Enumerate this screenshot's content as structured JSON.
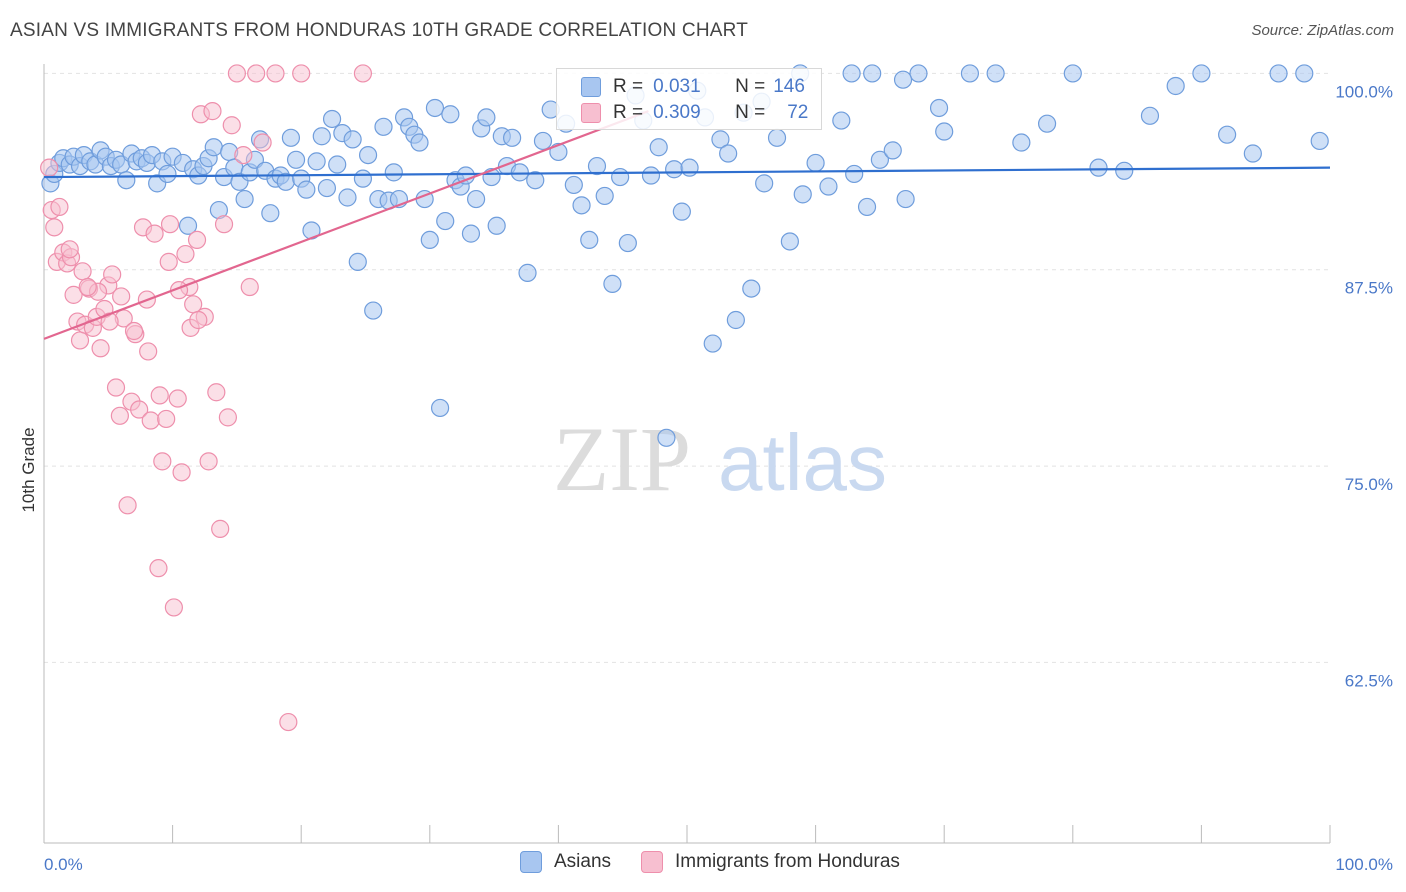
{
  "header": {
    "title": "ASIAN VS IMMIGRANTS FROM HONDURAS 10TH GRADE CORRELATION CHART",
    "source": "Source: ZipAtlas.com"
  },
  "watermark": {
    "zip": "ZIP",
    "atlas": "atlas"
  },
  "legend_top": {
    "rows": [
      {
        "r_label": "R =",
        "r_value": "0.031",
        "n_label": "N =",
        "n_value": "146"
      },
      {
        "r_label": "R =",
        "r_value": "0.309",
        "n_label": "N =",
        "n_value": "72"
      }
    ]
  },
  "legend_bottom": {
    "asians": "Asians",
    "honduras": "Immigrants from Honduras"
  },
  "colors": {
    "asians_fill": "#a8c6f0",
    "asians_stroke": "#6f9ddc",
    "asians_line": "#2f6fcf",
    "honduras_fill": "#f7bfd0",
    "honduras_stroke": "#ee8fac",
    "honduras_line": "#e2668f",
    "tick_text": "#4a78c8",
    "grid": "#e2e2e2"
  },
  "chart_data": {
    "type": "scatter",
    "title": "ASIAN VS IMMIGRANTS FROM HONDURAS 10TH GRADE CORRELATION CHART",
    "xlabel": "",
    "ylabel": "10th Grade",
    "xlim": [
      0,
      100
    ],
    "ylim": [
      51,
      100.6
    ],
    "x_tick_labels": [
      "0.0%",
      "100.0%"
    ],
    "y_ticks": [
      {
        "value": 100,
        "label": "100.0%"
      },
      {
        "value": 87.5,
        "label": "87.5%"
      },
      {
        "value": 75,
        "label": "75.0%"
      },
      {
        "value": 62.5,
        "label": "62.5%"
      }
    ],
    "series": [
      {
        "name": "Asians",
        "trend": {
          "x": [
            0,
            100
          ],
          "y": [
            93.4,
            94.0
          ]
        },
        "points": [
          [
            0.5,
            93.0
          ],
          [
            0.8,
            93.6
          ],
          [
            1.2,
            94.3
          ],
          [
            1.5,
            94.6
          ],
          [
            2.0,
            94.2
          ],
          [
            2.3,
            94.7
          ],
          [
            2.8,
            94.1
          ],
          [
            3.1,
            94.8
          ],
          [
            3.6,
            94.4
          ],
          [
            4.0,
            94.2
          ],
          [
            4.4,
            95.1
          ],
          [
            4.8,
            94.7
          ],
          [
            5.2,
            94.1
          ],
          [
            5.6,
            94.5
          ],
          [
            6.0,
            94.2
          ],
          [
            6.4,
            93.2
          ],
          [
            6.8,
            94.9
          ],
          [
            7.2,
            94.4
          ],
          [
            7.6,
            94.6
          ],
          [
            8.0,
            94.3
          ],
          [
            8.4,
            94.8
          ],
          [
            8.8,
            93.0
          ],
          [
            9.2,
            94.4
          ],
          [
            9.6,
            93.6
          ],
          [
            10.0,
            94.7
          ],
          [
            10.8,
            94.3
          ],
          [
            11.2,
            90.3
          ],
          [
            11.6,
            93.9
          ],
          [
            12.0,
            93.5
          ],
          [
            12.4,
            94.1
          ],
          [
            12.8,
            94.6
          ],
          [
            13.2,
            95.3
          ],
          [
            13.6,
            91.3
          ],
          [
            14.0,
            93.4
          ],
          [
            14.4,
            95.0
          ],
          [
            14.8,
            94.0
          ],
          [
            15.2,
            93.1
          ],
          [
            15.6,
            92.0
          ],
          [
            16.0,
            93.7
          ],
          [
            16.4,
            94.5
          ],
          [
            16.8,
            95.8
          ],
          [
            17.2,
            93.8
          ],
          [
            17.6,
            91.1
          ],
          [
            18.0,
            93.3
          ],
          [
            18.4,
            93.5
          ],
          [
            18.8,
            93.1
          ],
          [
            19.2,
            95.9
          ],
          [
            19.6,
            94.5
          ],
          [
            20.0,
            93.3
          ],
          [
            20.4,
            92.6
          ],
          [
            20.8,
            90.0
          ],
          [
            21.2,
            94.4
          ],
          [
            21.6,
            96.0
          ],
          [
            22.0,
            92.7
          ],
          [
            22.4,
            97.1
          ],
          [
            22.8,
            94.2
          ],
          [
            23.2,
            96.2
          ],
          [
            23.6,
            92.1
          ],
          [
            24.0,
            95.8
          ],
          [
            24.4,
            88.0
          ],
          [
            24.8,
            93.3
          ],
          [
            25.2,
            94.8
          ],
          [
            25.6,
            84.9
          ],
          [
            26.0,
            92.0
          ],
          [
            26.4,
            96.6
          ],
          [
            26.8,
            91.9
          ],
          [
            27.2,
            93.7
          ],
          [
            27.6,
            92.0
          ],
          [
            28.0,
            97.2
          ],
          [
            28.4,
            96.6
          ],
          [
            28.8,
            96.1
          ],
          [
            29.2,
            95.6
          ],
          [
            29.6,
            92.0
          ],
          [
            30.0,
            89.4
          ],
          [
            30.4,
            97.8
          ],
          [
            30.8,
            78.7
          ],
          [
            31.2,
            90.6
          ],
          [
            31.6,
            97.4
          ],
          [
            32.0,
            93.2
          ],
          [
            32.4,
            92.8
          ],
          [
            32.8,
            93.5
          ],
          [
            33.2,
            89.8
          ],
          [
            33.6,
            92.0
          ],
          [
            34.0,
            96.5
          ],
          [
            34.4,
            97.2
          ],
          [
            34.8,
            93.4
          ],
          [
            35.2,
            90.3
          ],
          [
            35.6,
            96.0
          ],
          [
            36.0,
            94.1
          ],
          [
            36.4,
            95.9
          ],
          [
            37.0,
            93.7
          ],
          [
            37.6,
            87.3
          ],
          [
            38.2,
            93.2
          ],
          [
            38.8,
            95.7
          ],
          [
            39.4,
            97.7
          ],
          [
            40.0,
            95.0
          ],
          [
            40.6,
            96.8
          ],
          [
            41.2,
            92.9
          ],
          [
            41.8,
            91.6
          ],
          [
            42.4,
            89.4
          ],
          [
            43.0,
            94.1
          ],
          [
            43.6,
            92.2
          ],
          [
            44.2,
            86.6
          ],
          [
            44.8,
            93.4
          ],
          [
            45.4,
            89.2
          ],
          [
            46.0,
            98.6
          ],
          [
            46.6,
            97.0
          ],
          [
            47.2,
            93.5
          ],
          [
            47.8,
            95.3
          ],
          [
            48.4,
            76.8
          ],
          [
            49.0,
            93.9
          ],
          [
            49.6,
            91.2
          ],
          [
            50.2,
            94.0
          ],
          [
            50.8,
            98.9
          ],
          [
            51.4,
            97.2
          ],
          [
            52.0,
            82.8
          ],
          [
            52.6,
            95.8
          ],
          [
            53.2,
            94.9
          ],
          [
            53.8,
            84.3
          ],
          [
            54.4,
            97.5
          ],
          [
            55.0,
            86.3
          ],
          [
            56.0,
            93.0
          ],
          [
            57.0,
            95.9
          ],
          [
            58.0,
            89.3
          ],
          [
            59.0,
            92.3
          ],
          [
            60.0,
            94.3
          ],
          [
            61.0,
            92.8
          ],
          [
            62.0,
            97.0
          ],
          [
            63.0,
            93.6
          ],
          [
            64.0,
            91.5
          ],
          [
            65.0,
            94.5
          ],
          [
            66.0,
            95.1
          ],
          [
            67.0,
            92.0
          ],
          [
            68.0,
            100.0
          ],
          [
            70.0,
            96.3
          ],
          [
            72.0,
            100.0
          ],
          [
            74.0,
            100.0
          ],
          [
            76.0,
            95.6
          ],
          [
            78.0,
            96.8
          ],
          [
            80.0,
            100.0
          ],
          [
            82.0,
            94.0
          ],
          [
            84.0,
            93.8
          ],
          [
            86.0,
            97.3
          ],
          [
            88.0,
            99.2
          ],
          [
            90.0,
            100.0
          ],
          [
            92.0,
            96.1
          ],
          [
            94.0,
            94.9
          ],
          [
            96.0,
            100.0
          ],
          [
            98.0,
            100.0
          ],
          [
            99.2,
            95.7
          ],
          [
            55.8,
            98.2
          ],
          [
            58.8,
            100.0
          ],
          [
            62.8,
            100.0
          ],
          [
            64.4,
            100.0
          ],
          [
            66.8,
            99.6
          ],
          [
            69.6,
            97.8
          ]
        ]
      },
      {
        "name": "Immigrants from Honduras",
        "trend": {
          "x": [
            0,
            47
          ],
          "y": [
            83.1,
            97.6
          ]
        },
        "points": [
          [
            0.4,
            94.0
          ],
          [
            0.6,
            91.3
          ],
          [
            0.8,
            90.2
          ],
          [
            1.0,
            88.0
          ],
          [
            1.2,
            91.5
          ],
          [
            1.5,
            88.6
          ],
          [
            1.8,
            87.9
          ],
          [
            2.1,
            88.3
          ],
          [
            2.3,
            85.9
          ],
          [
            2.6,
            84.2
          ],
          [
            2.8,
            83.0
          ],
          [
            3.0,
            87.4
          ],
          [
            3.2,
            84.0
          ],
          [
            3.5,
            86.3
          ],
          [
            3.8,
            83.8
          ],
          [
            4.1,
            84.5
          ],
          [
            4.4,
            82.5
          ],
          [
            4.7,
            85.0
          ],
          [
            5.0,
            86.5
          ],
          [
            5.3,
            87.2
          ],
          [
            5.6,
            80.0
          ],
          [
            5.9,
            78.2
          ],
          [
            6.2,
            84.4
          ],
          [
            6.5,
            72.5
          ],
          [
            6.8,
            79.1
          ],
          [
            7.1,
            83.4
          ],
          [
            7.4,
            78.6
          ],
          [
            7.7,
            90.2
          ],
          [
            8.0,
            85.6
          ],
          [
            8.3,
            77.9
          ],
          [
            8.6,
            89.8
          ],
          [
            8.9,
            68.5
          ],
          [
            9.2,
            75.3
          ],
          [
            9.5,
            78.0
          ],
          [
            9.8,
            90.4
          ],
          [
            10.1,
            66.0
          ],
          [
            10.4,
            79.3
          ],
          [
            10.7,
            74.6
          ],
          [
            11.0,
            88.5
          ],
          [
            11.3,
            86.4
          ],
          [
            11.6,
            85.3
          ],
          [
            11.9,
            89.4
          ],
          [
            12.2,
            97.4
          ],
          [
            12.5,
            84.5
          ],
          [
            12.8,
            75.3
          ],
          [
            13.1,
            97.6
          ],
          [
            13.4,
            79.7
          ],
          [
            13.7,
            71.0
          ],
          [
            14.0,
            90.4
          ],
          [
            14.3,
            78.1
          ],
          [
            14.6,
            96.7
          ],
          [
            15.0,
            100.0
          ],
          [
            15.5,
            94.8
          ],
          [
            16.0,
            86.4
          ],
          [
            16.5,
            100.0
          ],
          [
            17.0,
            95.6
          ],
          [
            18.0,
            100.0
          ],
          [
            19.0,
            58.7
          ],
          [
            20.0,
            100.0
          ],
          [
            24.8,
            100.0
          ],
          [
            4.2,
            86.1
          ],
          [
            5.1,
            84.2
          ],
          [
            6.0,
            85.8
          ],
          [
            7.0,
            83.6
          ],
          [
            8.1,
            82.3
          ],
          [
            9.0,
            79.5
          ],
          [
            9.7,
            88.0
          ],
          [
            10.5,
            86.2
          ],
          [
            11.4,
            83.8
          ],
          [
            12.0,
            84.3
          ],
          [
            2.0,
            88.8
          ],
          [
            3.4,
            86.4
          ]
        ]
      }
    ]
  }
}
